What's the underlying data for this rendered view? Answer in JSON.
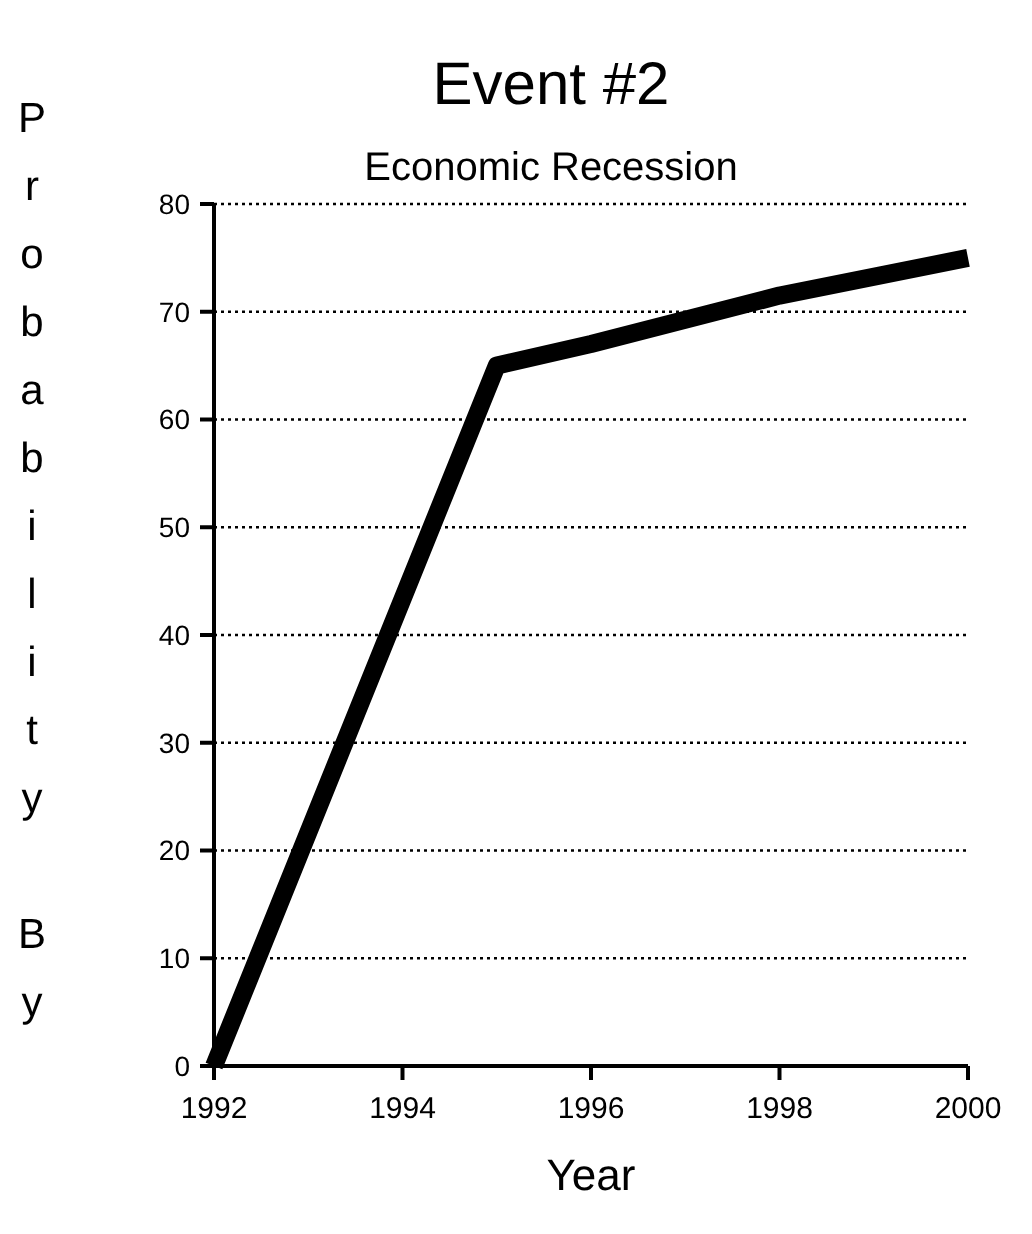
{
  "chart_data": {
    "type": "line",
    "title": "Event #2",
    "subtitle": "Economic Recession",
    "xlabel": "Year",
    "ylabel": "Probability By",
    "x": [
      1992,
      1995,
      1996,
      1998,
      2000
    ],
    "series": [
      {
        "color": "#000000",
        "values": [
          0,
          65,
          67,
          71.5,
          75
        ]
      }
    ],
    "xlim": [
      1992,
      2000
    ],
    "xticks": [
      1992,
      1994,
      1996,
      1998,
      2000
    ],
    "ylim": [
      0,
      80
    ],
    "yticks": [
      0,
      10,
      20,
      30,
      40,
      50,
      60,
      70,
      80
    ],
    "grid": "y",
    "line_style": "solid",
    "marker": "none"
  }
}
